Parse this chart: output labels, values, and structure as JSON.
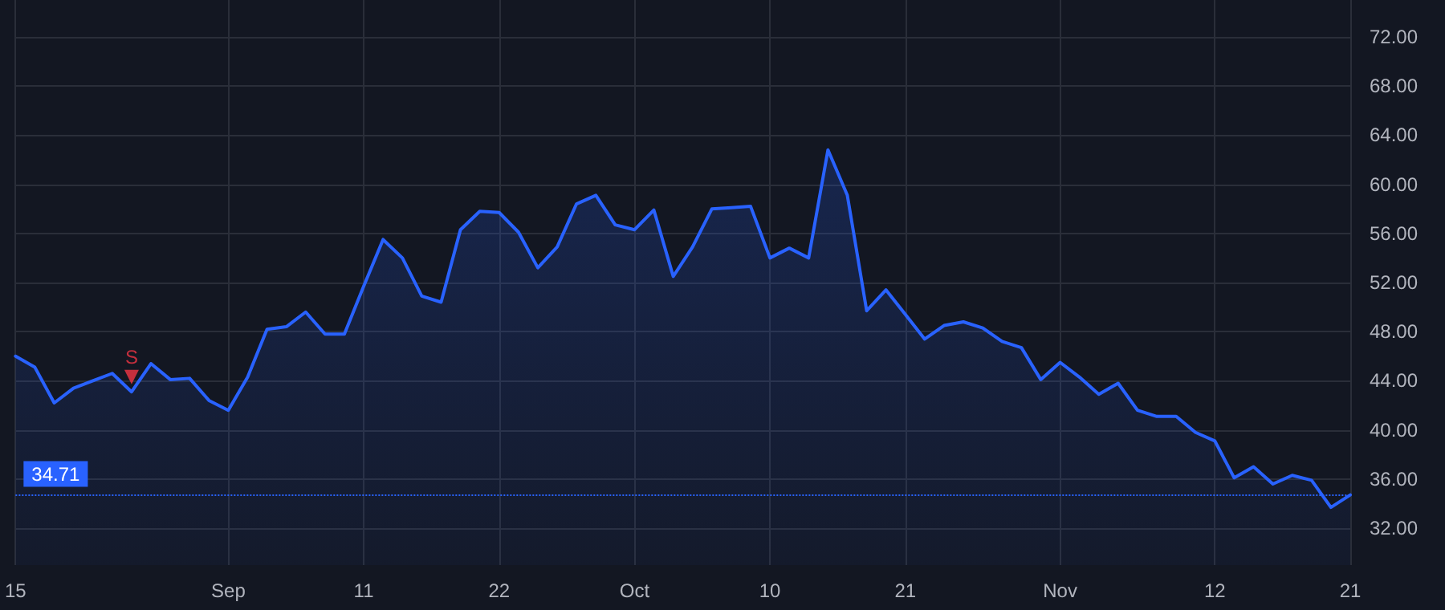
{
  "chart_data": {
    "type": "area",
    "categories": [
      "15",
      null,
      null,
      null,
      null,
      null,
      null,
      null,
      null,
      null,
      null,
      "Sep",
      null,
      null,
      null,
      null,
      null,
      null,
      "11",
      null,
      null,
      null,
      null,
      null,
      null,
      "22",
      null,
      null,
      null,
      null,
      null,
      null,
      "Oct",
      null,
      null,
      null,
      null,
      null,
      null,
      "10",
      null,
      null,
      null,
      null,
      null,
      null,
      "21",
      null,
      null,
      null,
      null,
      null,
      null,
      null,
      "Nov",
      null,
      null,
      null,
      null,
      null,
      null,
      null,
      "12",
      null,
      null,
      null,
      null,
      null,
      null,
      "21"
    ],
    "series": [
      {
        "color": "#2962ff",
        "values": [
          46.0,
          45.1,
          42.2,
          43.4,
          44.0,
          44.6,
          43.1,
          45.4,
          44.1,
          44.2,
          42.4,
          41.6,
          44.3,
          48.2,
          48.4,
          49.6,
          47.8,
          47.8,
          51.7,
          55.5,
          54.0,
          50.9,
          50.4,
          56.3,
          57.8,
          57.7,
          56.1,
          53.2,
          54.9,
          58.4,
          59.1,
          56.7,
          56.3,
          57.9,
          52.5,
          54.9,
          58.0,
          58.1,
          58.2,
          54.0,
          54.8,
          54.0,
          62.8,
          59.1,
          49.7,
          51.4,
          49.4,
          47.4,
          48.5,
          48.8,
          48.3,
          47.2,
          46.7,
          44.1,
          45.5,
          44.3,
          42.9,
          43.8,
          41.6,
          41.1,
          41.1,
          39.8,
          39.1,
          36.1,
          37.0,
          35.6,
          36.3,
          35.9,
          33.7,
          34.71
        ]
      },
      {
        "type": "scatter",
        "color": "#f23645",
        "marker": "triangle",
        "values": [
          null,
          null,
          null,
          null,
          null,
          null,
          44.3,
          null,
          null,
          null,
          null,
          null,
          null,
          null,
          null,
          null,
          null,
          null,
          null,
          null,
          null,
          null,
          null,
          null,
          null,
          null,
          null,
          null,
          null,
          null,
          null,
          null,
          null,
          null,
          null,
          null,
          null,
          null,
          null,
          null,
          null,
          null,
          null,
          null,
          null,
          null,
          null,
          null,
          null,
          null,
          null,
          null,
          null,
          null,
          null,
          null,
          null,
          null,
          null,
          null,
          null,
          null,
          null,
          null,
          null,
          null,
          null,
          null,
          null,
          null
        ],
        "value_labels": [
          null,
          null,
          null,
          null,
          null,
          null,
          "S",
          null,
          null,
          null,
          null,
          null,
          null,
          null,
          null,
          null,
          null,
          null,
          null,
          null,
          null,
          null,
          null,
          null,
          null,
          null,
          null,
          null,
          null,
          null,
          null,
          null,
          null,
          null,
          null,
          null,
          null,
          null,
          null,
          null,
          null,
          null,
          null,
          null,
          null,
          null,
          null,
          null,
          null,
          null,
          null,
          null,
          null,
          null,
          null,
          null,
          null,
          null,
          null,
          null,
          null,
          null,
          null,
          null,
          null,
          null,
          null,
          null,
          null,
          null
        ]
      }
    ],
    "ylim": [
      29,
      75
    ],
    "yticks": [
      {
        "value": 32,
        "label": "32.00"
      },
      {
        "value": 36,
        "label": "36.00"
      },
      {
        "value": 40,
        "label": "40.00"
      },
      {
        "value": 44,
        "label": "44.00"
      },
      {
        "value": 48,
        "label": "48.00"
      },
      {
        "value": 52,
        "label": "52.00"
      },
      {
        "value": 56,
        "label": "56.00"
      },
      {
        "value": 60,
        "label": "60.00"
      },
      {
        "value": 64,
        "label": "64.00"
      },
      {
        "value": 68,
        "label": "68.00"
      },
      {
        "value": 72,
        "label": "72.00"
      }
    ],
    "grid": true,
    "ref_lines": [
      {
        "axis": "y",
        "value": 34.71,
        "label": "34.71",
        "color": "#2962ff",
        "line_style": "dotted"
      }
    ]
  }
}
